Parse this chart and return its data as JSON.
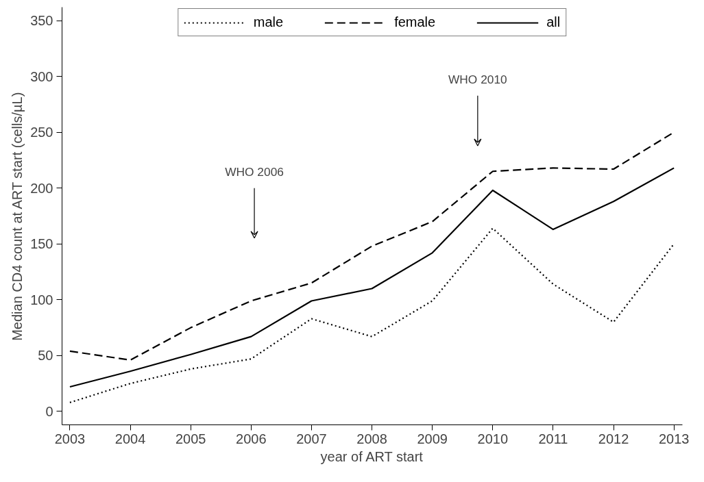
{
  "chart_data": {
    "type": "line",
    "xlabel": "year of ART start",
    "ylabel": "Median CD4 count at ART start (cells/µL)",
    "x": [
      2003,
      2004,
      2005,
      2006,
      2007,
      2008,
      2009,
      2010,
      2011,
      2012,
      2013
    ],
    "series": [
      {
        "name": "male",
        "color": "#000000",
        "line_style": "dotted",
        "values": [
          8,
          25,
          38,
          47,
          83,
          67,
          99,
          164,
          114,
          80,
          150
        ]
      },
      {
        "name": "female",
        "color": "#000000",
        "line_style": "dashed",
        "values": [
          54,
          46,
          75,
          99,
          115,
          148,
          170,
          215,
          218,
          217,
          250
        ]
      },
      {
        "name": "all",
        "color": "#000000",
        "line_style": "solid",
        "values": [
          22,
          36,
          51,
          67,
          99,
          110,
          142,
          198,
          163,
          188,
          218
        ]
      }
    ],
    "xlim": [
      2002.87,
      2013.14
    ],
    "xticks": [
      2003,
      2004,
      2005,
      2006,
      2007,
      2008,
      2009,
      2010,
      2011,
      2012,
      2013
    ],
    "ylim": [
      -12,
      362
    ],
    "yticks": [
      0,
      50,
      100,
      150,
      200,
      250,
      300,
      350
    ],
    "annotations": [
      "WHO 2006",
      "WHO 2010"
    ],
    "grid": false,
    "legend": "top",
    "marker": "none"
  }
}
